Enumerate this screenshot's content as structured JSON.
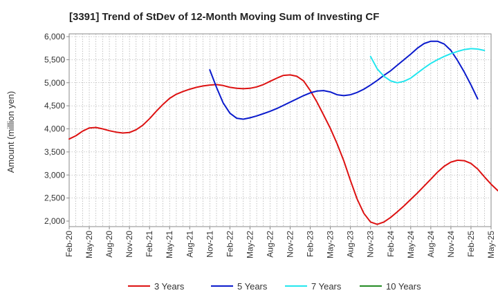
{
  "chart_data": {
    "type": "line",
    "title": "[3391]  Trend of StDev of 12-Month Moving Sum of Investing CF",
    "xlabel": "",
    "ylabel": "Amount (million yen)",
    "ylim": [
      2000,
      6000
    ],
    "yticks": [
      "2,000",
      "2,500",
      "3,000",
      "3,500",
      "4,000",
      "4,500",
      "5,000",
      "5,500",
      "6,000"
    ],
    "xticks": [
      "Feb-20",
      "May-20",
      "Aug-20",
      "Nov-20",
      "Feb-21",
      "May-21",
      "Aug-21",
      "Nov-21",
      "Feb-22",
      "May-22",
      "Aug-22",
      "Nov-22",
      "Feb-23",
      "May-23",
      "Aug-23",
      "Nov-23",
      "Feb-24",
      "May-24",
      "Aug-24",
      "Nov-24",
      "Feb-25",
      "May-25"
    ],
    "grid": true,
    "legend_position": "bottom",
    "series": [
      {
        "name": "3 Years",
        "color": "#dd1111",
        "start": "Feb-20",
        "values": [
          3780,
          3850,
          3950,
          4020,
          4030,
          4000,
          3960,
          3930,
          3910,
          3920,
          3980,
          4080,
          4220,
          4380,
          4530,
          4660,
          4750,
          4810,
          4860,
          4900,
          4930,
          4950,
          4960,
          4940,
          4900,
          4880,
          4870,
          4880,
          4910,
          4960,
          5030,
          5100,
          5160,
          5170,
          5140,
          5040,
          4830,
          4580,
          4300,
          4010,
          3680,
          3310,
          2880,
          2480,
          2170,
          1980,
          1930,
          1980,
          2080,
          2200,
          2330,
          2470,
          2610,
          2760,
          2910,
          3060,
          3190,
          3280,
          3320,
          3310,
          3250,
          3130,
          2960,
          2800,
          2660,
          2610
        ]
      },
      {
        "name": "5 Years",
        "color": "#0a1acc",
        "start": "Feb-20",
        "values": [
          null,
          null,
          null,
          null,
          null,
          null,
          null,
          null,
          null,
          null,
          null,
          null,
          null,
          null,
          null,
          null,
          null,
          null,
          null,
          null,
          null,
          5280,
          4900,
          4560,
          4340,
          4230,
          4210,
          4240,
          4280,
          4330,
          4380,
          4440,
          4510,
          4580,
          4650,
          4720,
          4780,
          4820,
          4830,
          4800,
          4740,
          4720,
          4740,
          4790,
          4860,
          4950,
          5050,
          5160,
          5260,
          5380,
          5500,
          5620,
          5750,
          5850,
          5900,
          5900,
          5840,
          5700,
          5480,
          5230,
          4950,
          4650
        ]
      },
      {
        "name": "7 Years",
        "color": "#22e6ee",
        "start": "Feb-20",
        "values": [
          null,
          null,
          null,
          null,
          null,
          null,
          null,
          null,
          null,
          null,
          null,
          null,
          null,
          null,
          null,
          null,
          null,
          null,
          null,
          null,
          null,
          null,
          null,
          null,
          null,
          null,
          null,
          null,
          null,
          null,
          null,
          null,
          null,
          null,
          null,
          null,
          null,
          null,
          null,
          null,
          null,
          null,
          null,
          null,
          null,
          5570,
          5300,
          5140,
          5040,
          5000,
          5030,
          5100,
          5210,
          5320,
          5420,
          5500,
          5570,
          5630,
          5680,
          5720,
          5740,
          5730,
          5700
        ]
      },
      {
        "name": "10 Years",
        "color": "#228b22",
        "start": "Feb-20",
        "values": []
      }
    ]
  }
}
